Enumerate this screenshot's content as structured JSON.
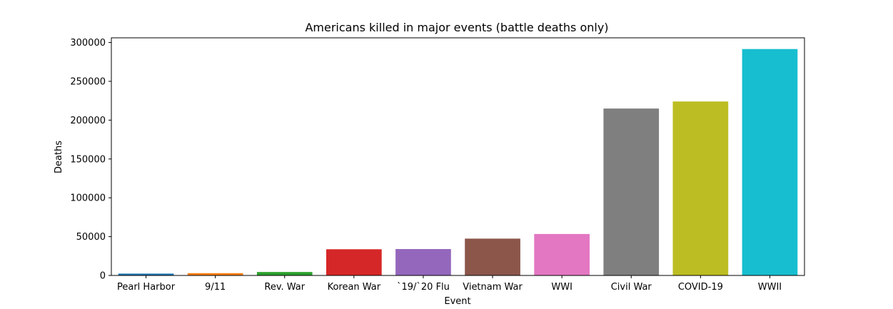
{
  "chart_data": {
    "type": "bar",
    "title": "Americans killed in major events (battle deaths only)",
    "xlabel": "Event",
    "ylabel": "Deaths",
    "categories": [
      "Pearl Harbor",
      "9/11",
      "Rev. War",
      "Korean War",
      "`19/`20 Flu",
      "Vietnam War",
      "WWI",
      "Civil War",
      "COVID-19",
      "WWII"
    ],
    "values": [
      2403,
      2977,
      4435,
      33739,
      34000,
      47434,
      53402,
      214938,
      224000,
      291557
    ],
    "colors": [
      "#1f77b4",
      "#ff7f0e",
      "#2ca02c",
      "#d62728",
      "#9467bd",
      "#8c564b",
      "#e377c2",
      "#7f7f7f",
      "#bcbd22",
      "#17becf"
    ],
    "ylim": [
      0,
      306000
    ],
    "yticks": [
      0,
      50000,
      100000,
      150000,
      200000,
      250000,
      300000
    ],
    "grid": false,
    "legend": "none"
  }
}
